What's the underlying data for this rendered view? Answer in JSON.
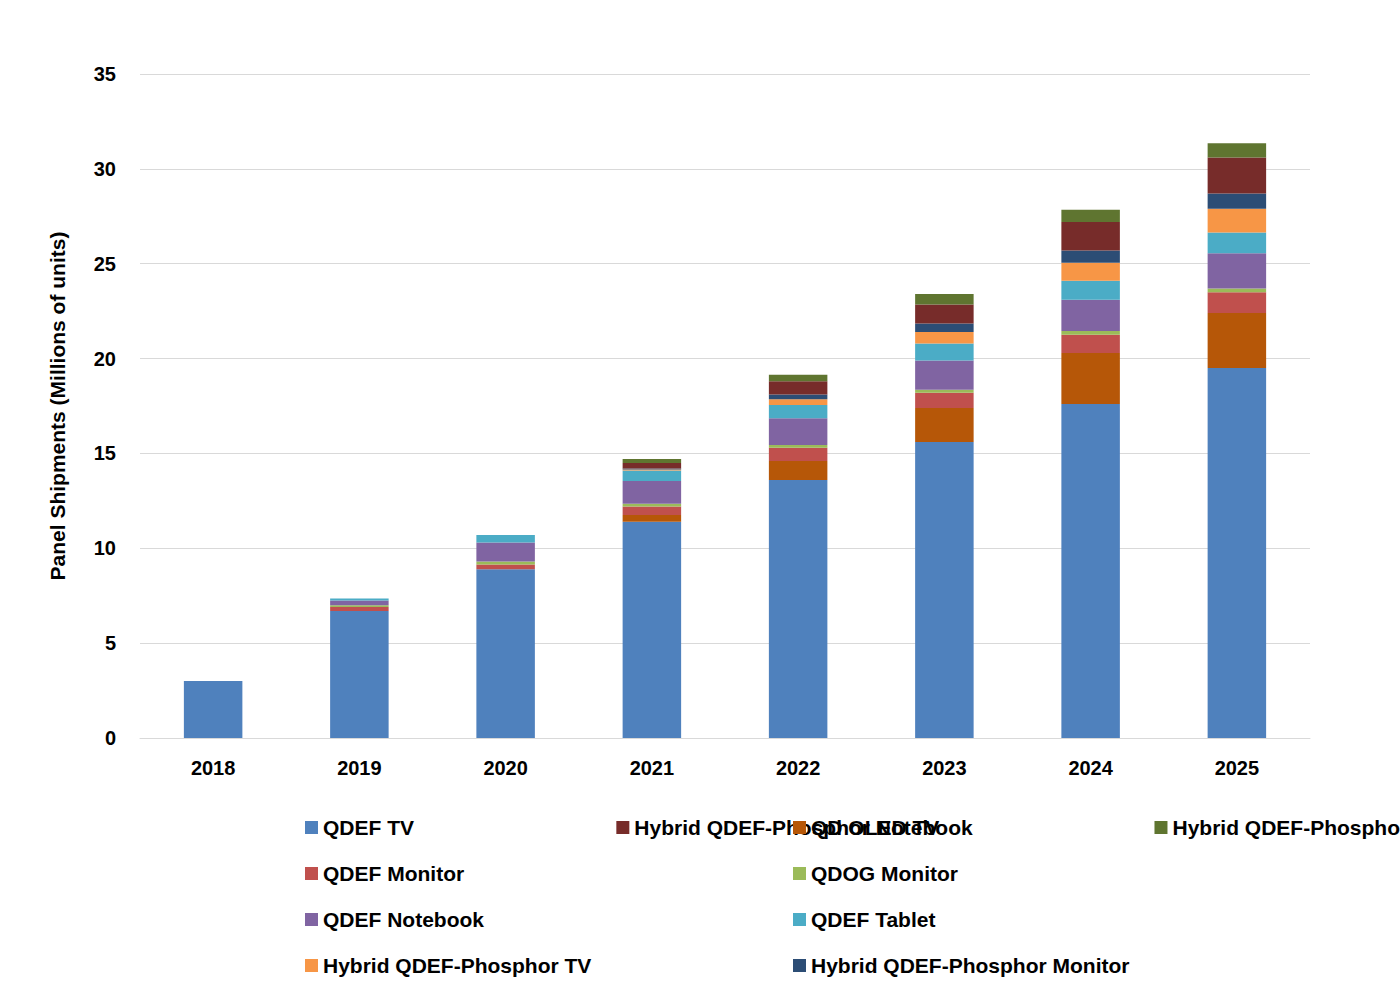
{
  "chart_data": {
    "type": "bar",
    "stacked": true,
    "grid": true,
    "legend": "bottom",
    "ylabel": "Panel Shipments (Millions of units)",
    "categories": [
      "2018",
      "2019",
      "2020",
      "2021",
      "2022",
      "2023",
      "2024",
      "2025"
    ],
    "ylim": [
      0,
      35
    ],
    "yticks": [
      0,
      5,
      10,
      15,
      20,
      25,
      30,
      35
    ],
    "series": [
      {
        "name": "QDEF TV",
        "color": "#4f81bd",
        "values": [
          3.0,
          6.7,
          8.9,
          11.4,
          13.6,
          15.6,
          17.6,
          19.5
        ]
      },
      {
        "name": "QD OLED TV",
        "color": "#b65708",
        "values": [
          0,
          0,
          0,
          0.35,
          1.0,
          1.8,
          2.7,
          2.9
        ]
      },
      {
        "name": "QDEF Monitor",
        "color": "#c0504d",
        "values": [
          0,
          0.2,
          0.25,
          0.45,
          0.7,
          0.8,
          0.95,
          1.1
        ]
      },
      {
        "name": "QDOG Monitor",
        "color": "#9bbb59",
        "values": [
          0,
          0.1,
          0.15,
          0.15,
          0.15,
          0.15,
          0.2,
          0.2
        ]
      },
      {
        "name": "QDEF Notebook",
        "color": "#8064a2",
        "values": [
          0,
          0.25,
          1.0,
          1.2,
          1.4,
          1.55,
          1.65,
          1.85
        ]
      },
      {
        "name": "QDEF Tablet",
        "color": "#4bacc6",
        "values": [
          0,
          0.1,
          0.4,
          0.55,
          0.7,
          0.9,
          1.0,
          1.1
        ]
      },
      {
        "name": "Hybrid QDEF-Phosphor TV",
        "color": "#f79646",
        "values": [
          0,
          0,
          0,
          0.05,
          0.3,
          0.6,
          0.95,
          1.25
        ]
      },
      {
        "name": "Hybrid QDEF-Phosphor Monitor",
        "color": "#2c4d75",
        "values": [
          0,
          0,
          0,
          0.05,
          0.25,
          0.45,
          0.65,
          0.8
        ]
      },
      {
        "name": "Hybrid QDEF-Phosphor Notebook",
        "color": "#772c2a",
        "values": [
          0,
          0,
          0,
          0.3,
          0.7,
          1.0,
          1.5,
          1.9
        ]
      },
      {
        "name": "Hybrid QDEF-Phosphor Tablet",
        "color": "#5f7530",
        "values": [
          0,
          0,
          0,
          0.2,
          0.35,
          0.55,
          0.65,
          0.75
        ]
      }
    ]
  }
}
